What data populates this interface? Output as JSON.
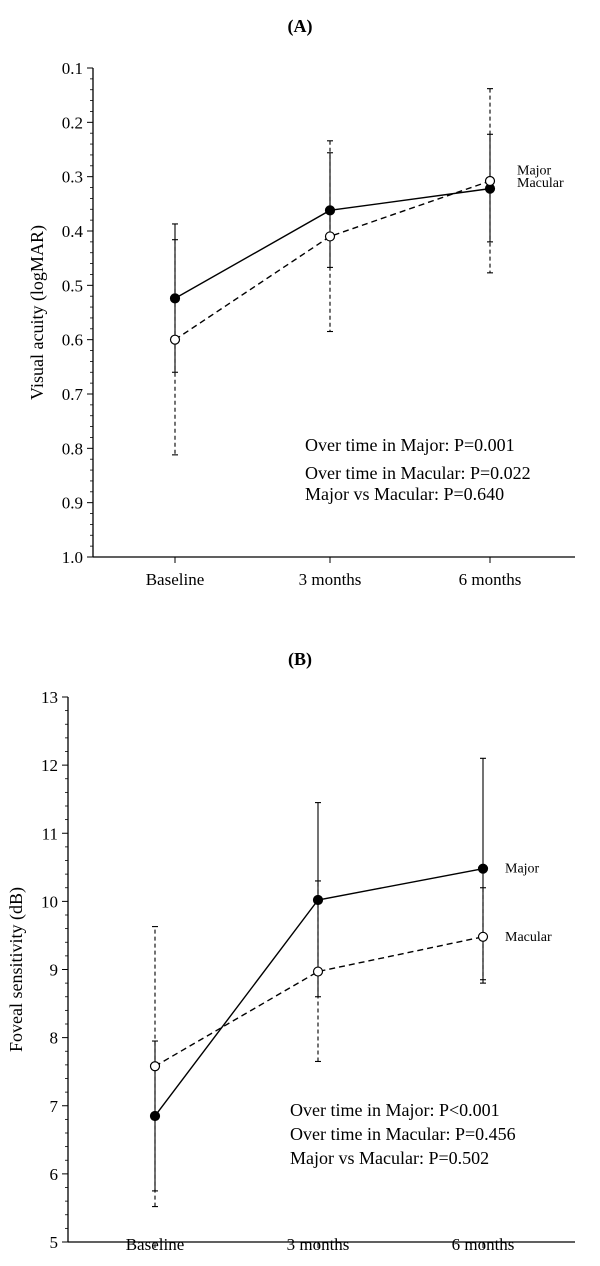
{
  "chart_data": [
    {
      "panel_label": "(A)",
      "type": "line",
      "categories": [
        "Baseline",
        "3 months",
        "6 months"
      ],
      "ylabel": "Visual acuity (logMAR)",
      "ylim": [
        0.1,
        1.0
      ],
      "y_inverted": true,
      "yticks": [
        "0.1",
        "0.2",
        "0.3",
        "0.4",
        "0.5",
        "0.6",
        "0.7",
        "0.8",
        "0.9",
        "1.0"
      ],
      "grid": false,
      "series": [
        {
          "name": "Major",
          "marker": "filled-circle",
          "linestyle": "solid",
          "values": [
            0.524,
            0.362,
            0.322
          ],
          "err_low": [
            0.387,
            0.256,
            0.222
          ],
          "err_high": [
            0.66,
            0.467,
            0.42
          ]
        },
        {
          "name": "Macular",
          "marker": "open-circle",
          "linestyle": "dashed",
          "values": [
            0.6,
            0.41,
            0.308
          ],
          "err_low": [
            0.416,
            0.234,
            0.138
          ],
          "err_high": [
            0.812,
            0.585,
            0.477
          ]
        }
      ],
      "annotations": [
        "Over time in Major: P=0.001",
        "Over time in Macular: P=0.022",
        "Major vs Macular: P=0.640"
      ]
    },
    {
      "panel_label": "(B)",
      "type": "line",
      "categories": [
        "Baseline",
        "3 months",
        "6 months"
      ],
      "ylabel": "Foveal sensitivity (dB)",
      "ylim": [
        5,
        13
      ],
      "yticks": [
        "5",
        "6",
        "7",
        "8",
        "9",
        "10",
        "11",
        "12",
        "13"
      ],
      "grid": false,
      "series": [
        {
          "name": "Major",
          "marker": "filled-circle",
          "linestyle": "solid",
          "values": [
            6.85,
            10.02,
            10.48
          ],
          "err_low": [
            5.75,
            8.6,
            8.85
          ],
          "err_high": [
            7.95,
            11.45,
            12.1
          ]
        },
        {
          "name": "Macular",
          "marker": "open-circle",
          "linestyle": "dashed",
          "values": [
            7.58,
            8.97,
            9.48
          ],
          "err_low": [
            5.52,
            7.65,
            8.8
          ],
          "err_high": [
            9.63,
            10.3,
            10.2
          ]
        }
      ],
      "annotations": [
        "Over time in Major: P<0.001",
        "Over time in Macular: P=0.456",
        "Major vs Macular: P=0.502"
      ]
    }
  ]
}
